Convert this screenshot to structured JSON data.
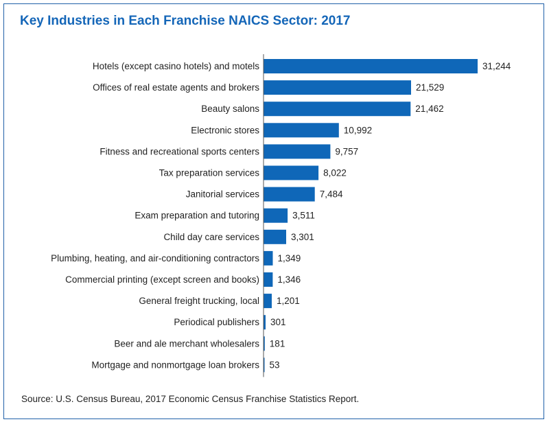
{
  "chart_data": {
    "type": "bar",
    "orientation": "horizontal",
    "title": "Key Industries in Each Franchise NAICS Sector: 2017",
    "source": "Source: U.S. Census Bureau, 2017 Economic Census Franchise Statistics Report.",
    "categories": [
      "Hotels (except casino hotels) and motels",
      "Offices of real estate agents and brokers",
      "Beauty salons",
      "Electronic stores",
      "Fitness and recreational sports centers",
      "Tax preparation services",
      "Janitorial services",
      "Exam preparation and tutoring",
      "Child day care services",
      "Plumbing, heating, and air-conditioning contractors",
      "Commercial printing (except screen and books)",
      "General freight trucking, local",
      "Periodical publishers",
      "Beer and ale merchant wholesalers",
      "Mortgage and nonmortgage loan brokers"
    ],
    "values": [
      31244,
      21529,
      21462,
      10992,
      9757,
      8022,
      7484,
      3511,
      3301,
      1349,
      1346,
      1201,
      301,
      181,
      53
    ],
    "value_labels": [
      "31,244",
      "21,529",
      "21,462",
      "10,992",
      "9,757",
      "8,022",
      "7,484",
      "3,511",
      "3,301",
      "1,349",
      "1,346",
      "1,201",
      "301",
      "181",
      "53"
    ],
    "bar_color": "#0f67b8",
    "title_color": "#1466b8",
    "grid": false,
    "legend": "none"
  }
}
